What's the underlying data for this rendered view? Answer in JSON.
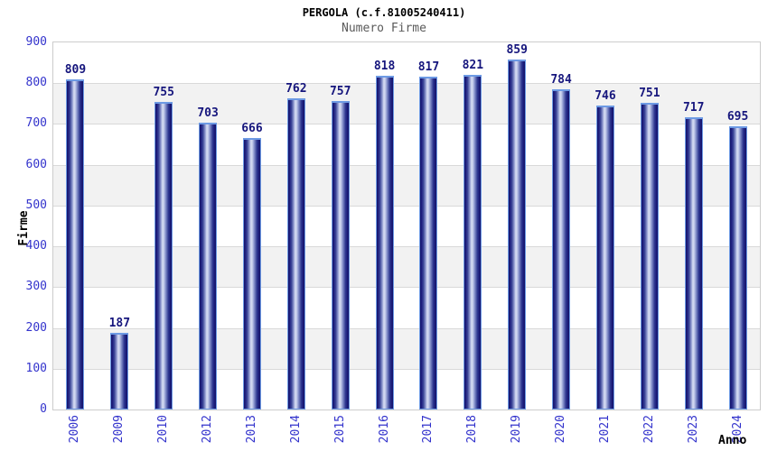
{
  "chart_data": {
    "type": "bar",
    "title": "PERGOLA (c.f.81005240411)",
    "subtitle": "Numero Firme",
    "xlabel": "Anno",
    "ylabel": "Firme",
    "categories": [
      "2006",
      "2009",
      "2010",
      "2012",
      "2013",
      "2014",
      "2015",
      "2016",
      "2017",
      "2018",
      "2019",
      "2020",
      "2021",
      "2022",
      "2023",
      "2024"
    ],
    "values": [
      809,
      187,
      755,
      703,
      666,
      762,
      757,
      818,
      817,
      821,
      859,
      784,
      746,
      751,
      717,
      695
    ],
    "ylim": [
      0,
      900
    ],
    "ytick_step": 100,
    "legend": "none",
    "grid": "horizontal gridlines with alternating white/gray bands",
    "value_labels": "above each bar",
    "colors": {
      "axis_tick_label": "#3333cc",
      "value_label": "#16167d",
      "bar_edge_dark": "#141467",
      "bar_center_light": "#d9dff4",
      "bar_outline": "#6d9ae4",
      "band_gray": "#f2f2f2",
      "gridline": "#d9d9d9",
      "plot_border": "#cccccc",
      "title_color": "#000000",
      "subtitle_color": "#5a5a5a"
    }
  }
}
